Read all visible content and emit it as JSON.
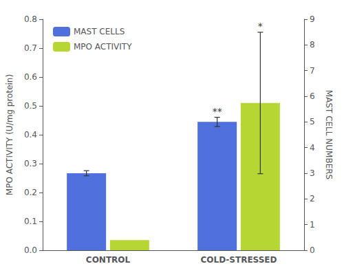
{
  "chart_data": {
    "type": "bar",
    "categories": [
      "CONTROL",
      "COLD-STRESSED"
    ],
    "series": [
      {
        "name": "MAST CELLS",
        "axis": "y2",
        "values": [
          3.0,
          5.0
        ],
        "errors": [
          0.1,
          0.18
        ]
      },
      {
        "name": "MPO ACTIVITY",
        "values": [
          0.035,
          0.51
        ],
        "errors": [
          null,
          0.245
        ]
      }
    ],
    "ylabel": "MPO ACTIVITY (U/mg protein)",
    "y2label": "MAST CELL NUMBERS",
    "ylim": [
      0,
      0.8
    ],
    "yticks": [
      {
        "value": 0.0,
        "label": "0.0"
      },
      0.1,
      0.2,
      0.3,
      0.4,
      0.5,
      0.6,
      0.7,
      0.8
    ],
    "y2lim": [
      0,
      9
    ],
    "y2ticks": [
      0,
      1,
      2,
      3,
      4,
      5,
      6,
      7,
      8,
      9
    ],
    "annotations": [
      {
        "text": "**",
        "series": "MAST CELLS",
        "category": "COLD-STRESSED"
      },
      {
        "text": "*",
        "series": "MPO ACTIVITY",
        "category": "COLD-STRESSED"
      }
    ],
    "legend": "upper left",
    "grid": false
  }
}
